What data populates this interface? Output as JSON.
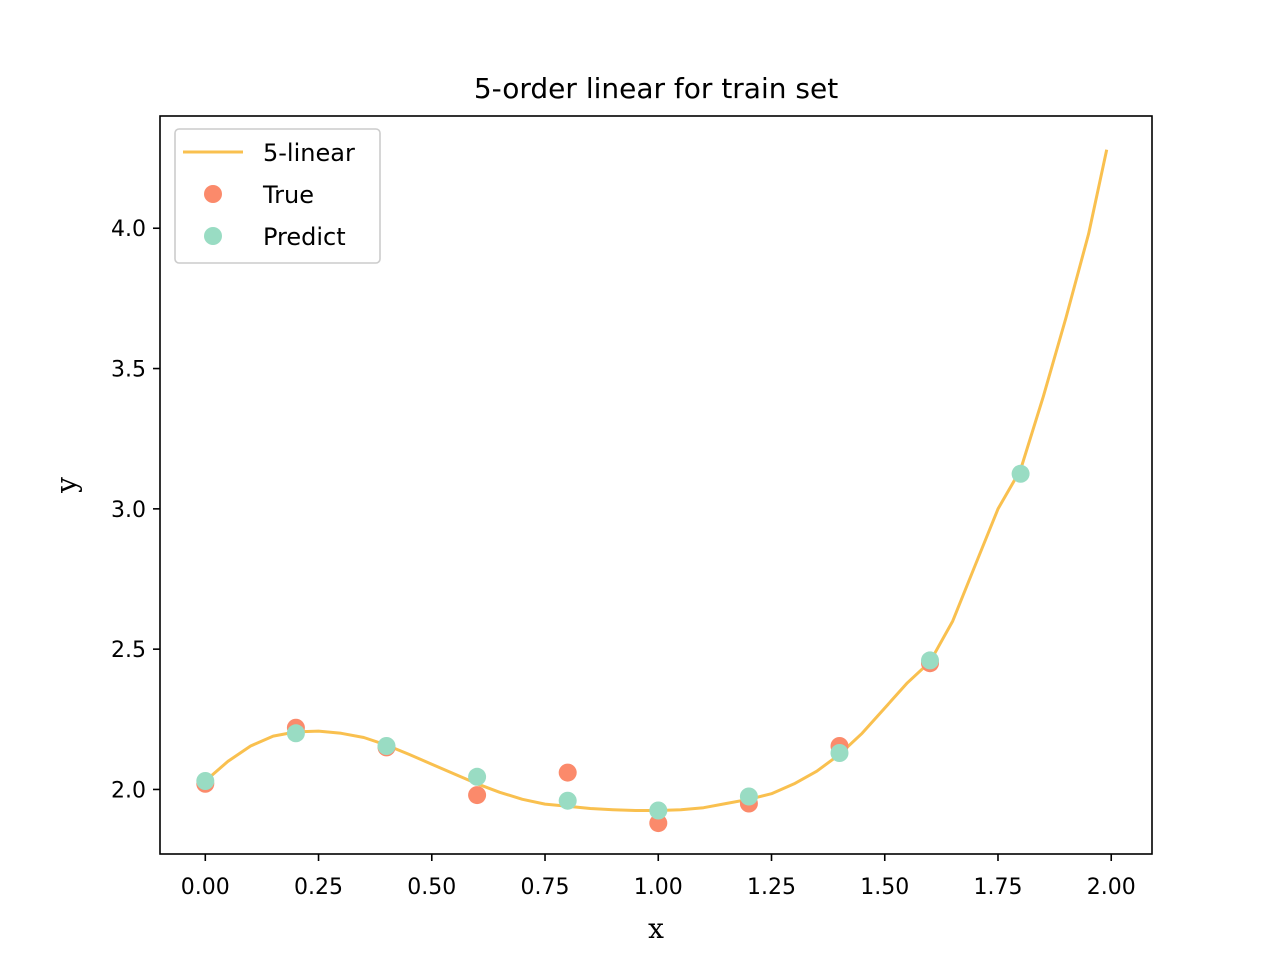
{
  "chart_data": {
    "type": "line",
    "title": "5-order linear for train set",
    "xlabel": "x",
    "ylabel": "y",
    "xlim": [
      -0.1,
      2.09
    ],
    "ylim": [
      1.77,
      4.4
    ],
    "x_ticks": [
      "0.00",
      "0.25",
      "0.50",
      "0.75",
      "1.00",
      "1.25",
      "1.50",
      "1.75",
      "2.00"
    ],
    "y_ticks": [
      "2.0",
      "2.5",
      "3.0",
      "3.5",
      "4.0"
    ],
    "grid": false,
    "legend_placement": "top-left",
    "series": [
      {
        "name": "5-linear",
        "kind": "line",
        "color": "#f9c04f",
        "x": [
          0.0,
          0.05,
          0.1,
          0.15,
          0.2,
          0.25,
          0.3,
          0.35,
          0.4,
          0.45,
          0.5,
          0.55,
          0.6,
          0.65,
          0.7,
          0.75,
          0.8,
          0.85,
          0.9,
          0.95,
          1.0,
          1.05,
          1.1,
          1.15,
          1.2,
          1.25,
          1.3,
          1.35,
          1.4,
          1.45,
          1.5,
          1.55,
          1.6,
          1.65,
          1.7,
          1.75,
          1.8,
          1.85,
          1.9,
          1.95,
          1.99
        ],
        "y": [
          2.03,
          2.1,
          2.155,
          2.19,
          2.205,
          2.208,
          2.2,
          2.185,
          2.158,
          2.125,
          2.09,
          2.055,
          2.02,
          1.99,
          1.965,
          1.948,
          1.94,
          1.932,
          1.928,
          1.925,
          1.925,
          1.928,
          1.935,
          1.95,
          1.965,
          1.985,
          2.02,
          2.065,
          2.125,
          2.2,
          2.29,
          2.38,
          2.455,
          2.6,
          2.8,
          3.0,
          3.14,
          3.4,
          3.68,
          3.98,
          4.28
        ]
      },
      {
        "name": "True",
        "kind": "scatter",
        "color": "#fb8a6b",
        "x": [
          0.0,
          0.2,
          0.4,
          0.6,
          0.8,
          1.0,
          1.2,
          1.4,
          1.6
        ],
        "y": [
          2.02,
          2.22,
          2.15,
          1.98,
          2.06,
          1.88,
          1.95,
          2.155,
          2.45
        ]
      },
      {
        "name": "Predict",
        "kind": "scatter",
        "color": "#99dcc3",
        "x": [
          0.0,
          0.2,
          0.4,
          0.6,
          0.8,
          1.0,
          1.2,
          1.4,
          1.6,
          1.8
        ],
        "y": [
          2.03,
          2.2,
          2.155,
          2.045,
          1.96,
          1.925,
          1.975,
          2.13,
          2.46,
          3.125
        ]
      }
    ]
  }
}
